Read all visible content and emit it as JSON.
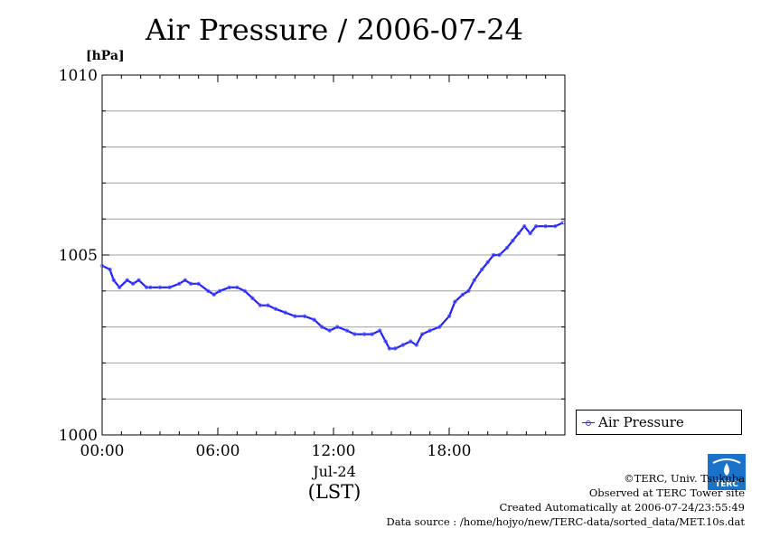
{
  "title": "Air Pressure / 2006-07-24",
  "unit_label": "[hPa]",
  "legend": {
    "label": "Air Pressure",
    "position": "right"
  },
  "x_date_label": "Jul-24",
  "x_axis_label": "(LST)",
  "credits": {
    "line1": "©TERC, Univ. Tsukuba",
    "line2": "Observed at TERC Tower site",
    "line3": "Created Automatically at 2006-07-24/23:55:49",
    "line4": "Data source : /home/hojyo/new/TERC-data/sorted_data/MET.10s.dat"
  },
  "logo_text": "TERC",
  "colors": {
    "series": "#2020ff",
    "marker": "#6060ff",
    "grid": "#a0a0a0",
    "logo": "#1a73c8"
  },
  "chart_data": {
    "type": "line",
    "title": "Air Pressure / 2006-07-24",
    "xlabel": "(LST)",
    "ylabel": "[hPa]",
    "x_unit": "hours",
    "xlim": [
      0,
      24
    ],
    "ylim": [
      1000,
      1010
    ],
    "x_ticks": [
      {
        "value": 0,
        "label": "00:00"
      },
      {
        "value": 6,
        "label": "06:00"
      },
      {
        "value": 12,
        "label": "12:00"
      },
      {
        "value": 18,
        "label": "18:00"
      }
    ],
    "y_ticks": [
      {
        "value": 1000,
        "label": "1000"
      },
      {
        "value": 1005,
        "label": "1005"
      },
      {
        "value": 1010,
        "label": "1010"
      }
    ],
    "grid": true,
    "series": [
      {
        "name": "Air Pressure",
        "x": [
          0.0,
          0.4,
          0.6,
          0.9,
          1.3,
          1.6,
          1.9,
          2.3,
          2.5,
          3.0,
          3.5,
          4.0,
          4.3,
          4.6,
          5.0,
          5.5,
          5.8,
          6.1,
          6.6,
          7.0,
          7.4,
          7.8,
          8.2,
          8.6,
          9.0,
          9.5,
          10.0,
          10.5,
          11.0,
          11.4,
          11.8,
          12.2,
          12.7,
          13.1,
          13.6,
          14.0,
          14.4,
          14.7,
          14.9,
          15.2,
          15.6,
          16.0,
          16.3,
          16.6,
          17.0,
          17.5,
          18.0,
          18.3,
          18.7,
          19.0,
          19.3,
          19.7,
          20.0,
          20.3,
          20.6,
          21.0,
          21.3,
          21.6,
          21.9,
          22.2,
          22.5,
          23.0,
          23.5,
          23.9
        ],
        "y": [
          1004.7,
          1004.6,
          1004.3,
          1004.1,
          1004.3,
          1004.2,
          1004.3,
          1004.1,
          1004.1,
          1004.1,
          1004.1,
          1004.2,
          1004.3,
          1004.2,
          1004.2,
          1004.0,
          1003.9,
          1004.0,
          1004.1,
          1004.1,
          1004.0,
          1003.8,
          1003.6,
          1003.6,
          1003.5,
          1003.4,
          1003.3,
          1003.3,
          1003.2,
          1003.0,
          1002.9,
          1003.0,
          1002.9,
          1002.8,
          1002.8,
          1002.8,
          1002.9,
          1002.6,
          1002.4,
          1002.4,
          1002.5,
          1002.6,
          1002.5,
          1002.8,
          1002.9,
          1003.0,
          1003.3,
          1003.7,
          1003.9,
          1004.0,
          1004.3,
          1004.6,
          1004.8,
          1005.0,
          1005.0,
          1005.2,
          1005.4,
          1005.6,
          1005.8,
          1005.6,
          1005.8,
          1005.8,
          1005.8,
          1005.9
        ]
      }
    ]
  }
}
